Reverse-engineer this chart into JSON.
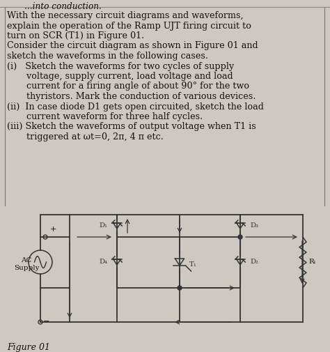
{
  "bg_color": "#cdc9c0",
  "text_color": "#111111",
  "circuit_color": "#333333",
  "font_size_text": 9.2,
  "font_size_label": 7.5,
  "figure_label": "Figure 01",
  "lines": [
    "With the necessary circuit diagrams and waveforms,",
    "explain the operation of the Ramp UJT firing circuit to",
    "turn on SCR (T1) in Figure 01.",
    "Consider the circuit diagram as shown in Figure 01 and",
    "sketch the waveforms in the following cases."
  ],
  "item_i_lines": [
    "(i)   Sketch the waveforms for two cycles of supply",
    "       voltage, supply current, load voltage and load",
    "       current for a firing angle of about 90° for the two",
    "       thyristors. Mark the conduction of various devices."
  ],
  "item_ii_lines": [
    "(ii)  In case diode D1 gets open circuited, sketch the load",
    "       current waveform for three half cycles."
  ],
  "item_iii_lines": [
    "(iii) Sketch the waveforms of output voltage when T1 is",
    "       triggered at ωt=0, 2π, 4 π etc."
  ]
}
